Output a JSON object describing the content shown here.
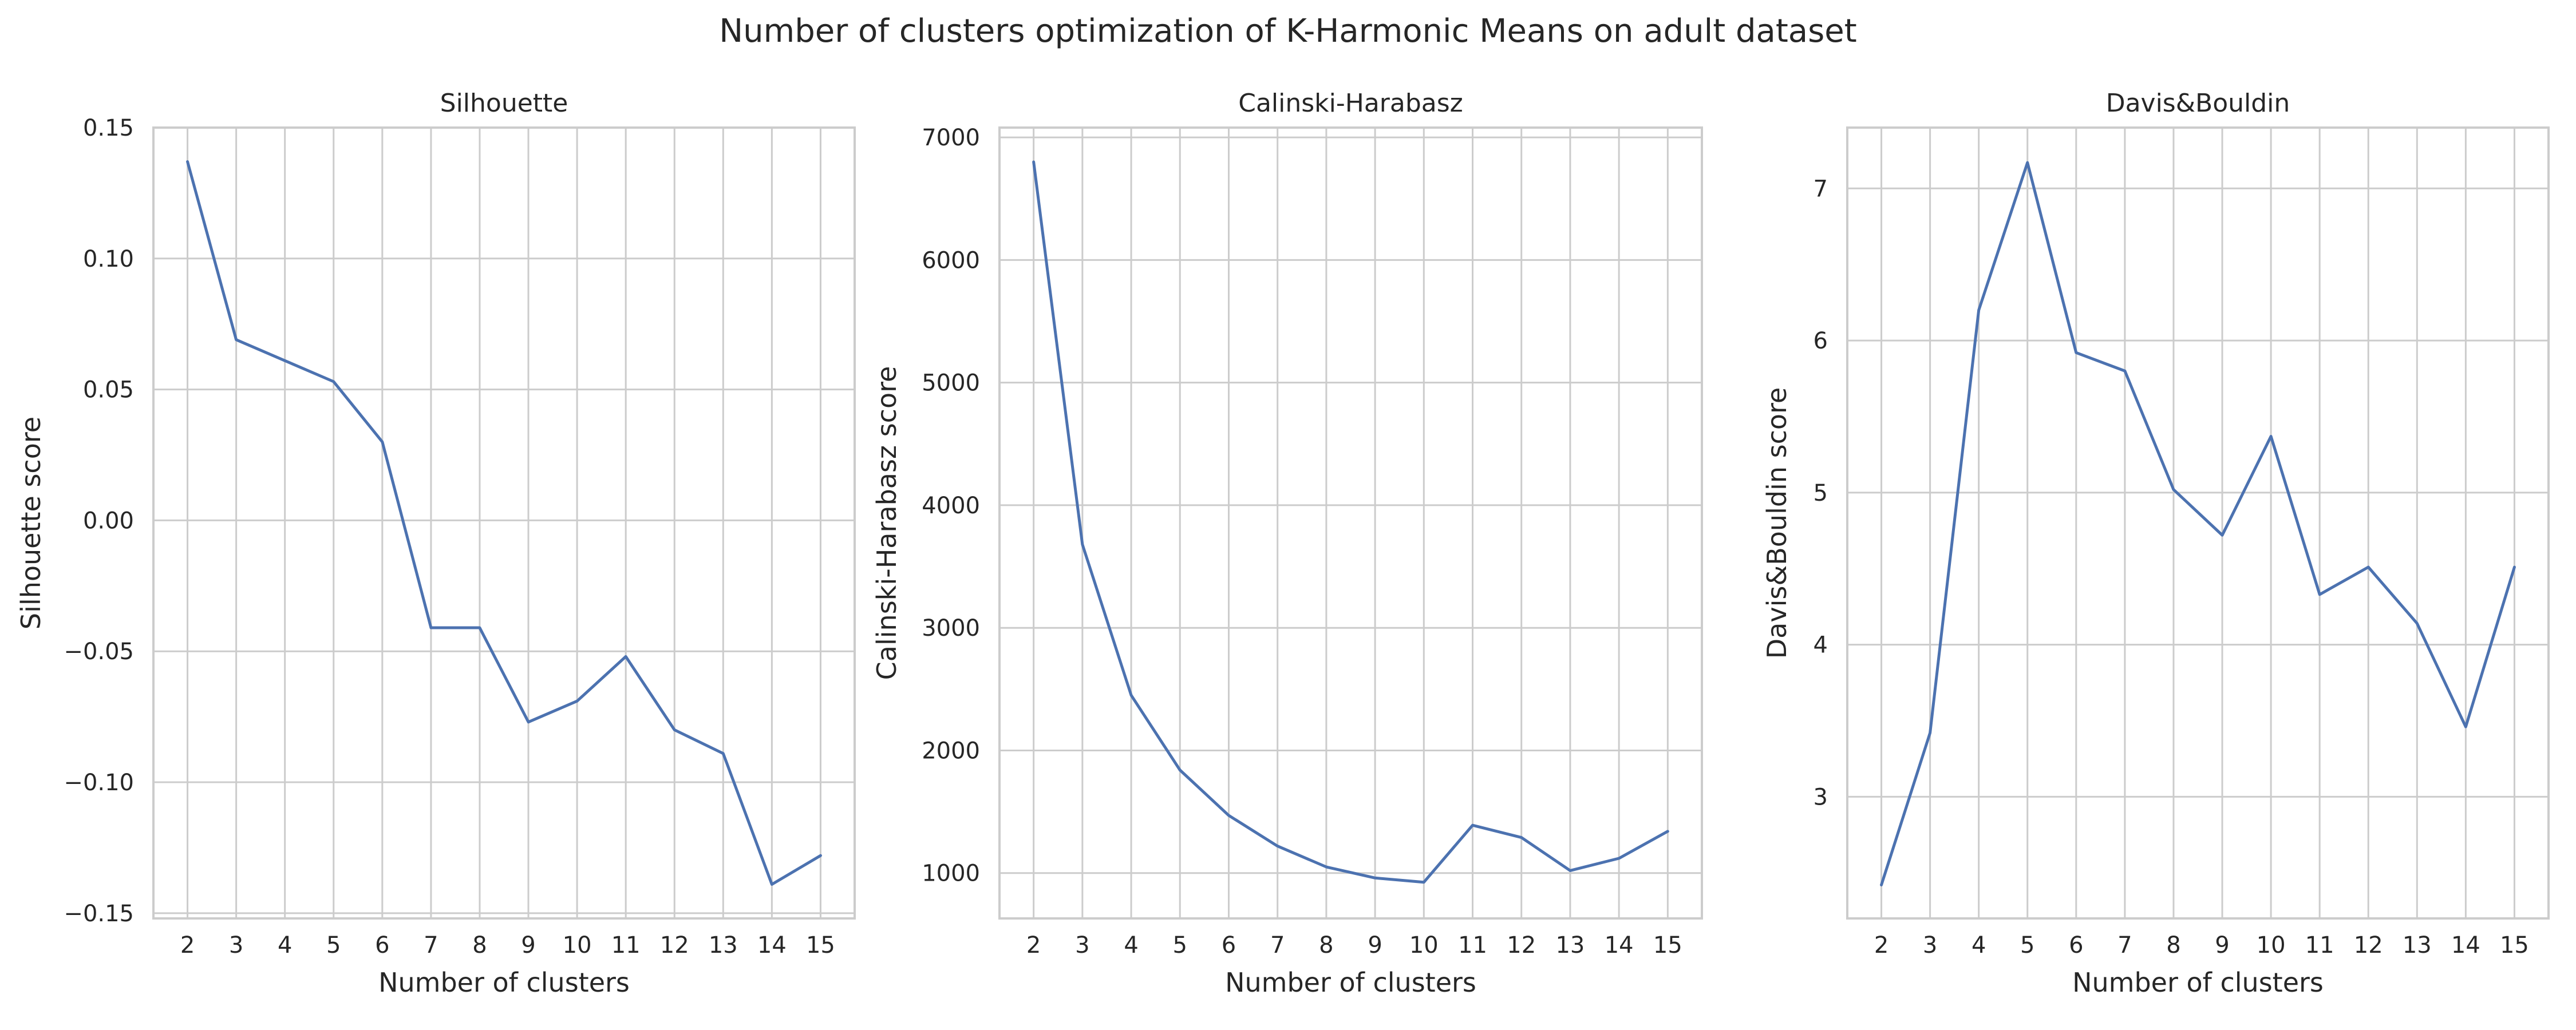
{
  "suptitle": "Number of clusters optimization of K-Harmonic Means on adult dataset",
  "colors": {
    "line": "#4c72b0",
    "grid": "#cccccc",
    "text": "#262626"
  },
  "chart_data": [
    {
      "type": "line",
      "title": "Silhouette",
      "xlabel": "Number of clusters",
      "ylabel": "Silhouette score",
      "x": [
        2,
        3,
        4,
        5,
        6,
        7,
        8,
        9,
        10,
        11,
        12,
        13,
        14,
        15
      ],
      "y": [
        0.137,
        0.069,
        0.061,
        0.053,
        0.03,
        -0.041,
        -0.041,
        -0.077,
        -0.069,
        -0.052,
        -0.08,
        -0.089,
        -0.139,
        -0.128
      ],
      "xlim": [
        1.3,
        15.7
      ],
      "ylim": [
        -0.152,
        0.15
      ],
      "yticks": [
        -0.15,
        -0.1,
        -0.05,
        0.0,
        0.05,
        0.1,
        0.15
      ],
      "ytick_labels": [
        "−0.15",
        "−0.10",
        "−0.05",
        "0.00",
        "0.05",
        "0.10",
        "0.15"
      ],
      "grid": true
    },
    {
      "type": "line",
      "title": "Calinski-Harabasz",
      "xlabel": "Number of clusters",
      "ylabel": "Calinski-Harabasz score",
      "x": [
        2,
        3,
        4,
        5,
        6,
        7,
        8,
        9,
        10,
        11,
        12,
        13,
        14,
        15
      ],
      "y": [
        6800,
        3680,
        2450,
        1840,
        1470,
        1220,
        1050,
        960,
        925,
        1390,
        1290,
        1020,
        1120,
        1340
      ],
      "xlim": [
        1.3,
        15.7
      ],
      "ylim": [
        630,
        7080
      ],
      "yticks": [
        1000,
        2000,
        3000,
        4000,
        5000,
        6000,
        7000
      ],
      "ytick_labels": [
        "1000",
        "2000",
        "3000",
        "4000",
        "5000",
        "6000",
        "7000"
      ],
      "grid": true
    },
    {
      "type": "line",
      "title": "Davis&Bouldin",
      "xlabel": "Number of clusters",
      "ylabel": "Davis&Bouldin score",
      "x": [
        2,
        3,
        4,
        5,
        6,
        7,
        8,
        9,
        10,
        11,
        12,
        13,
        14,
        15
      ],
      "y": [
        2.42,
        3.42,
        6.2,
        7.17,
        5.92,
        5.8,
        5.02,
        4.72,
        5.37,
        4.33,
        4.51,
        4.14,
        3.46,
        4.51
      ],
      "xlim": [
        1.3,
        15.7
      ],
      "ylim": [
        2.2,
        7.4
      ],
      "yticks": [
        3,
        4,
        5,
        6,
        7
      ],
      "ytick_labels": [
        "3",
        "4",
        "5",
        "6",
        "7"
      ],
      "grid": true
    }
  ]
}
